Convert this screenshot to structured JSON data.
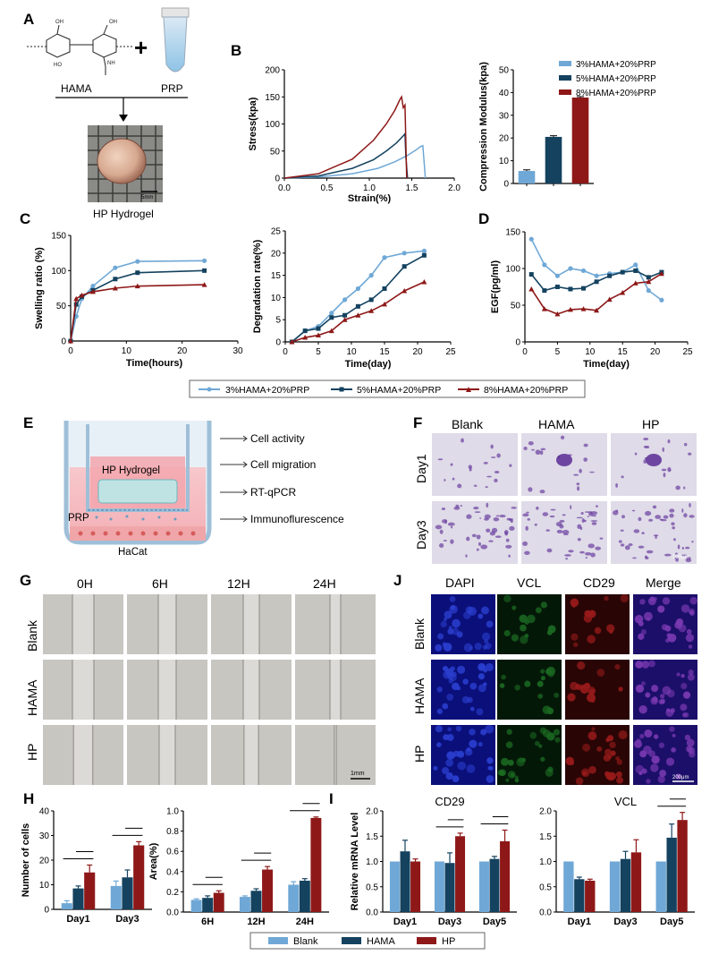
{
  "panels": {
    "A": "A",
    "B": "B",
    "C": "C",
    "D": "D",
    "E": "E",
    "F": "F",
    "G": "G",
    "H": "H",
    "I": "I",
    "J": "J"
  },
  "colors": {
    "light": "#6fa8d6",
    "dark": "#14425f",
    "red": "#8e1818",
    "grid": "#555555"
  },
  "panelA": {
    "hama": "HAMA",
    "prp": "PRP",
    "plus": "+",
    "hydrogel": "HP Hydrogel",
    "scale": "5mm"
  },
  "panelE": {
    "hydrogel": "HP Hydrogel",
    "prp": "PRP",
    "hacat": "HaCat",
    "items": [
      "Cell activity",
      "Cell migration",
      "RT-qPCR",
      "Immunoflurescence"
    ]
  },
  "panelF": {
    "cols": [
      "Blank",
      "HAMA",
      "HP"
    ],
    "rows": [
      "Day1",
      "Day3"
    ],
    "scale": "100μm"
  },
  "panelG": {
    "cols": [
      "0H",
      "6H",
      "12H",
      "24H"
    ],
    "rows": [
      "Blank",
      "HAMA",
      "HP"
    ],
    "scale": "1mm"
  },
  "panelJ": {
    "cols": [
      "DAPI",
      "VCL",
      "CD29",
      "Merge"
    ],
    "rows": [
      "Blank",
      "HAMA",
      "HP"
    ],
    "scale": "200μm"
  },
  "legend_prp": [
    "3%HAMA+20%PRP",
    "5%HAMA+20%PRP",
    "8%HAMA+20%PRP"
  ],
  "legend_groups": [
    "Blank",
    "HAMA",
    "HP"
  ],
  "chart_data": [
    {
      "id": "B1",
      "type": "line",
      "xlabel": "Strain(%)",
      "ylabel": "Stress(kpa)",
      "xlim": [
        0,
        2
      ],
      "ylim": [
        0,
        200
      ],
      "xticks": [
        "0.0",
        "0.5",
        "1.0",
        "1.5",
        "2.0"
      ],
      "yticks": [
        "0",
        "50",
        "100",
        "150",
        "200"
      ],
      "series": [
        {
          "name": "3%HAMA+20%PRP",
          "x": [
            0,
            0.4,
            0.8,
            1.1,
            1.3,
            1.45,
            1.55,
            1.6,
            1.63,
            1.65,
            1.66
          ],
          "y": [
            0,
            2,
            8,
            18,
            30,
            42,
            52,
            58,
            60,
            20,
            0
          ]
        },
        {
          "name": "5%HAMA+20%PRP",
          "x": [
            0,
            0.4,
            0.8,
            1.05,
            1.2,
            1.32,
            1.4,
            1.42,
            1.43,
            1.45
          ],
          "y": [
            0,
            4,
            18,
            34,
            50,
            65,
            78,
            82,
            40,
            0
          ]
        },
        {
          "name": "8%HAMA+20%PRP",
          "x": [
            0,
            0.4,
            0.8,
            1.05,
            1.2,
            1.3,
            1.36,
            1.38,
            1.4,
            1.42,
            1.44
          ],
          "y": [
            0,
            8,
            35,
            70,
            100,
            125,
            145,
            150,
            130,
            135,
            0
          ]
        }
      ]
    },
    {
      "id": "B2",
      "type": "bar",
      "ylabel": "Compression Modulus(kpa)",
      "ylim": [
        0,
        50
      ],
      "yticks": [
        "0",
        "10",
        "20",
        "30",
        "40",
        "50"
      ],
      "categories": [
        "3%HAMA+20%PRP",
        "5%HAMA+20%PRP",
        "8%HAMA+20%PRP"
      ],
      "values": [
        5.5,
        20.5,
        37.8
      ],
      "errors": [
        0.5,
        0.5,
        0.4
      ]
    },
    {
      "id": "C1",
      "type": "line",
      "xlabel": "Time(hours)",
      "ylabel": "Swelling ratio (%)",
      "xlim": [
        0,
        30
      ],
      "ylim": [
        0,
        150
      ],
      "xticks": [
        "0",
        "10",
        "20",
        "30"
      ],
      "yticks": [
        "0",
        "50",
        "100",
        "150"
      ],
      "series": [
        {
          "name": "3%HAMA+20%PRP",
          "x": [
            0,
            1,
            2,
            4,
            8,
            12,
            24
          ],
          "y": [
            0,
            35,
            60,
            78,
            104,
            113,
            114
          ]
        },
        {
          "name": "5%HAMA+20%PRP",
          "x": [
            0,
            1,
            2,
            4,
            8,
            12,
            24
          ],
          "y": [
            0,
            52,
            63,
            72,
            88,
            97,
            100
          ]
        },
        {
          "name": "8%HAMA+20%PRP",
          "x": [
            0,
            1,
            2,
            4,
            8,
            12,
            24
          ],
          "y": [
            0,
            60,
            65,
            70,
            75,
            78,
            80
          ]
        }
      ]
    },
    {
      "id": "C2",
      "type": "line",
      "xlabel": "Time(day)",
      "ylabel": "Degradation rate(%)",
      "xlim": [
        0,
        25
      ],
      "ylim": [
        0,
        25
      ],
      "xticks": [
        "0",
        "5",
        "10",
        "15",
        "20",
        "25"
      ],
      "yticks": [
        "0",
        "5",
        "10",
        "15",
        "20",
        "25"
      ],
      "series": [
        {
          "name": "3%HAMA+20%PRP",
          "x": [
            1,
            3,
            5,
            7,
            9,
            11,
            13,
            15,
            18,
            21
          ],
          "y": [
            0,
            2.5,
            3.5,
            6.5,
            9.5,
            12,
            15,
            19,
            20,
            20.5
          ]
        },
        {
          "name": "5%HAMA+20%PRP",
          "x": [
            1,
            3,
            5,
            7,
            9,
            11,
            13,
            15,
            18,
            21
          ],
          "y": [
            0,
            2.5,
            3,
            5.5,
            6,
            8,
            9.5,
            12,
            17,
            19.5
          ]
        },
        {
          "name": "8%HAMA+20%PRP",
          "x": [
            1,
            3,
            5,
            7,
            9,
            11,
            13,
            15,
            18,
            21
          ],
          "y": [
            0,
            1,
            1.5,
            2.5,
            5,
            6,
            7,
            8.5,
            11.5,
            13.5
          ]
        }
      ]
    },
    {
      "id": "D",
      "type": "line",
      "xlabel": "Time(day)",
      "ylabel": "EGF(pg/ml)",
      "xlim": [
        0,
        25
      ],
      "ylim": [
        0,
        150
      ],
      "xticks": [
        "0",
        "5",
        "10",
        "15",
        "20",
        "25"
      ],
      "yticks": [
        "0",
        "50",
        "100",
        "150"
      ],
      "series": [
        {
          "name": "3%HAMA+20%PRP",
          "x": [
            1,
            3,
            5,
            7,
            9,
            11,
            13,
            15,
            17,
            19,
            21
          ],
          "y": [
            140,
            105,
            90,
            100,
            97,
            90,
            93,
            95,
            105,
            70,
            57
          ]
        },
        {
          "name": "5%HAMA+20%PRP",
          "x": [
            1,
            3,
            5,
            7,
            9,
            11,
            13,
            15,
            17,
            19,
            21
          ],
          "y": [
            92,
            70,
            75,
            72,
            73,
            82,
            90,
            95,
            97,
            88,
            95
          ]
        },
        {
          "name": "8%HAMA+20%PRP",
          "x": [
            1,
            3,
            5,
            7,
            9,
            11,
            13,
            15,
            17,
            19,
            21
          ],
          "y": [
            72,
            45,
            38,
            44,
            45,
            43,
            58,
            67,
            80,
            82,
            93
          ]
        }
      ]
    },
    {
      "id": "H1",
      "type": "bar",
      "ylabel": "Number of cells",
      "ylim": [
        0,
        40
      ],
      "yticks": [
        "0",
        "10",
        "20",
        "30",
        "40"
      ],
      "categories": [
        "Day1",
        "Day3"
      ],
      "series": [
        {
          "name": "Blank",
          "values": [
            2.5,
            9.5
          ],
          "errors": [
            1,
            2
          ]
        },
        {
          "name": "HAMA",
          "values": [
            8.5,
            13
          ],
          "errors": [
            1,
            3
          ]
        },
        {
          "name": "HP",
          "values": [
            15,
            26
          ],
          "errors": [
            3,
            1.5
          ]
        }
      ]
    },
    {
      "id": "H2",
      "type": "bar",
      "ylabel": "Area(%)",
      "ylim": [
        0,
        1.0
      ],
      "yticks": [
        "0.0",
        "0.2",
        "0.4",
        "0.6",
        "0.8",
        "1.0"
      ],
      "categories": [
        "6H",
        "12H",
        "24H"
      ],
      "series": [
        {
          "name": "Blank",
          "values": [
            0.12,
            0.15,
            0.27
          ],
          "errors": [
            0.01,
            0.01,
            0.03
          ]
        },
        {
          "name": "HAMA",
          "values": [
            0.14,
            0.21,
            0.31
          ],
          "errors": [
            0.02,
            0.02,
            0.02
          ]
        },
        {
          "name": "HP",
          "values": [
            0.19,
            0.42,
            0.93
          ],
          "errors": [
            0.02,
            0.03,
            0.01
          ]
        }
      ]
    },
    {
      "id": "I1",
      "type": "bar",
      "title": "CD29",
      "ylabel": "Relative mRNA Level",
      "ylim": [
        0,
        2.0
      ],
      "yticks": [
        "0.0",
        "0.5",
        "1.0",
        "1.5",
        "2.0"
      ],
      "categories": [
        "Day1",
        "Day3",
        "Day5"
      ],
      "series": [
        {
          "name": "Blank",
          "values": [
            1,
            1,
            1
          ],
          "errors": [
            0,
            0,
            0
          ]
        },
        {
          "name": "HAMA",
          "values": [
            1.2,
            0.97,
            1.05
          ],
          "errors": [
            0.22,
            0.2,
            0.05
          ]
        },
        {
          "name": "HP",
          "values": [
            1.0,
            1.5,
            1.4
          ],
          "errors": [
            0.05,
            0.06,
            0.22
          ]
        }
      ]
    },
    {
      "id": "I2",
      "type": "bar",
      "title": "VCL",
      "ylim": [
        0,
        2.0
      ],
      "yticks": [
        "0.0",
        "0.5",
        "1.0",
        "1.5",
        "2.0"
      ],
      "categories": [
        "Day1",
        "Day3",
        "Day5"
      ],
      "series": [
        {
          "name": "Blank",
          "values": [
            1,
            1,
            1
          ],
          "errors": [
            0,
            0,
            0
          ]
        },
        {
          "name": "HAMA",
          "values": [
            0.65,
            1.05,
            1.47
          ],
          "errors": [
            0.04,
            0.15,
            0.27
          ]
        },
        {
          "name": "HP",
          "values": [
            0.62,
            1.18,
            1.82
          ],
          "errors": [
            0.03,
            0.25,
            0.15
          ]
        }
      ]
    }
  ]
}
